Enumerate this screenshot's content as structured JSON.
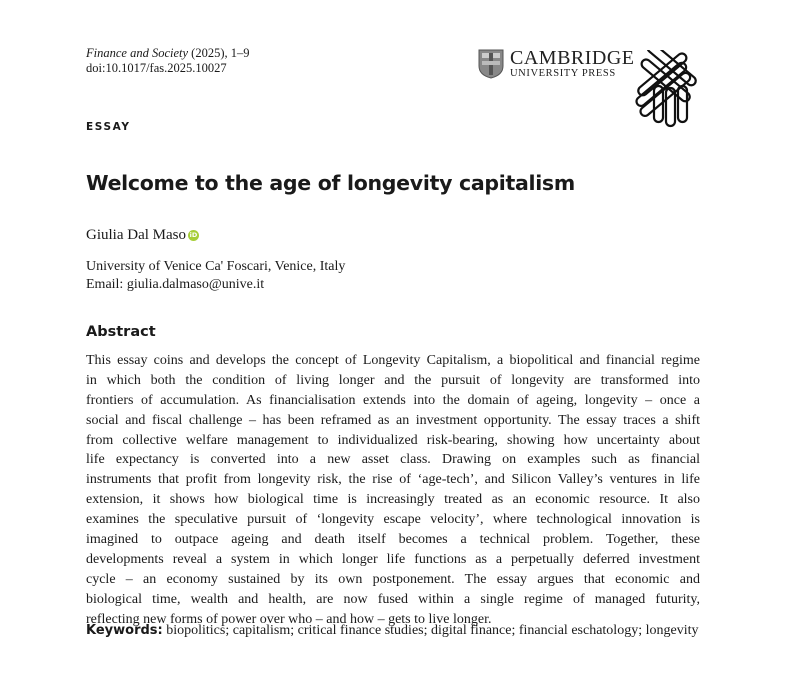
{
  "header": {
    "journal_name": "Finance and Society",
    "journal_citation": " (2025), 1–9",
    "doi": "doi:10.1017/fas.2025.10027",
    "publisher_logo": {
      "name": "CAMBRIDGE",
      "subtitle": "UNIVERSITY PRESS"
    },
    "journal_logo": "interlaced-bars-logo"
  },
  "article_type": "ESSAY",
  "title": "Welcome to the age of longevity capitalism",
  "author": {
    "name": "Giulia Dal Maso",
    "orcid_badge": "iD",
    "orcid_color": "#a6ce39"
  },
  "affiliation": "University of Venice Ca' Foscari, Venice, Italy",
  "email": "Email: giulia.dalmaso@unive.it",
  "abstract": {
    "heading": "Abstract",
    "lines": [
      "This essay coins and develops the concept of Longevity Capitalism, a biopolitical and financial regime",
      "in which both the condition of living longer and the pursuit of longevity are transformed into",
      "frontiers of accumulation. As financialisation extends into the domain of ageing, longevity – once a",
      "social and fiscal challenge – has been reframed as an investment opportunity. The essay traces a shift",
      "from collective welfare management to individualized risk-bearing, showing how uncertainty about",
      "life expectancy is converted into a new asset class. Drawing on examples such as financial",
      "instruments that profit from longevity risk, the rise of ‘age-tech’, and Silicon Valley’s ventures in life",
      "extension, it shows how biological time is increasingly treated as an economic resource. It also",
      "examines the speculative pursuit of ‘longevity escape velocity’, where technological innovation is",
      "imagined to outpace ageing and death itself becomes a technical problem. Together, these",
      "developments reveal a system in which longer life functions as a perpetually deferred investment",
      "cycle – an economy sustained by its own postponement. The essay argues that economic and",
      "biological time, wealth and health, are now fused within a single regime of managed futurity,",
      "reflecting new forms of power over who – and how – gets to live longer."
    ]
  },
  "keywords": {
    "label": "Keywords:",
    "text": " biopolitics; capitalism; critical finance studies; digital finance; financial eschatology; longevity"
  }
}
